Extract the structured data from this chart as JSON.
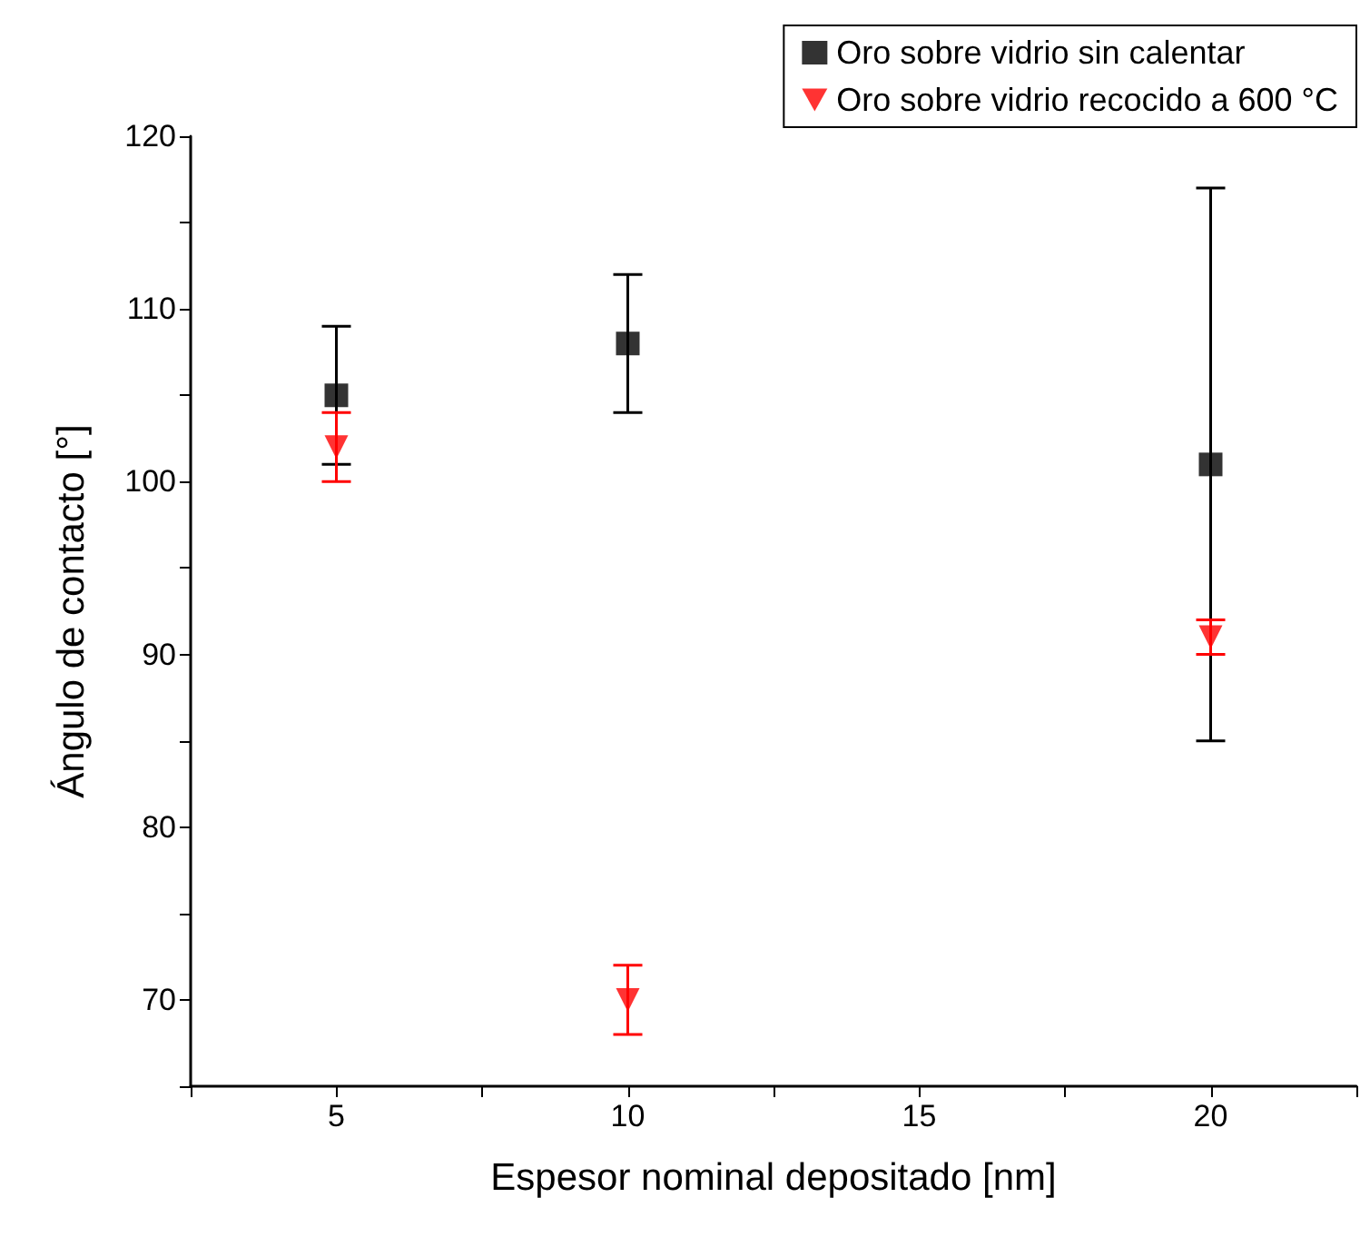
{
  "chart_data": {
    "type": "scatter",
    "xlabel": "Espesor nominal depositado [nm]",
    "ylabel": "Ángulo de contacto [°]",
    "xlim": [
      2.5,
      22.5
    ],
    "xticks": [
      {
        "value": 2.5,
        "label": null
      },
      5,
      {
        "value": 7.5,
        "label": null
      },
      10,
      {
        "value": 12.5,
        "label": null
      },
      15,
      {
        "value": 17.5,
        "label": null
      },
      20,
      {
        "value": 22.5,
        "label": null
      }
    ],
    "ylim": [
      65,
      120
    ],
    "yticks": [
      {
        "value": 65,
        "label": null
      },
      70,
      {
        "value": 75,
        "label": null
      },
      80,
      {
        "value": 85,
        "label": null
      },
      90,
      {
        "value": 95,
        "label": null
      },
      100,
      {
        "value": 105,
        "label": null
      },
      110,
      {
        "value": 115,
        "label": null
      },
      120
    ],
    "grid": false,
    "legend": "top right",
    "series": [
      {
        "name": "Oro sobre vidrio sin calentar",
        "color": "#000000",
        "marker": "square",
        "x": [
          5,
          10,
          20
        ],
        "values": [
          105,
          108,
          101
        ],
        "errors": [
          4,
          4,
          16
        ]
      },
      {
        "name": "Oro sobre vidrio recocido a 600 °C",
        "color": "#ff0000",
        "marker": "triangle",
        "x": [
          5,
          10,
          20
        ],
        "values": [
          102,
          70,
          91
        ],
        "errors": [
          2,
          2,
          1
        ]
      }
    ]
  }
}
